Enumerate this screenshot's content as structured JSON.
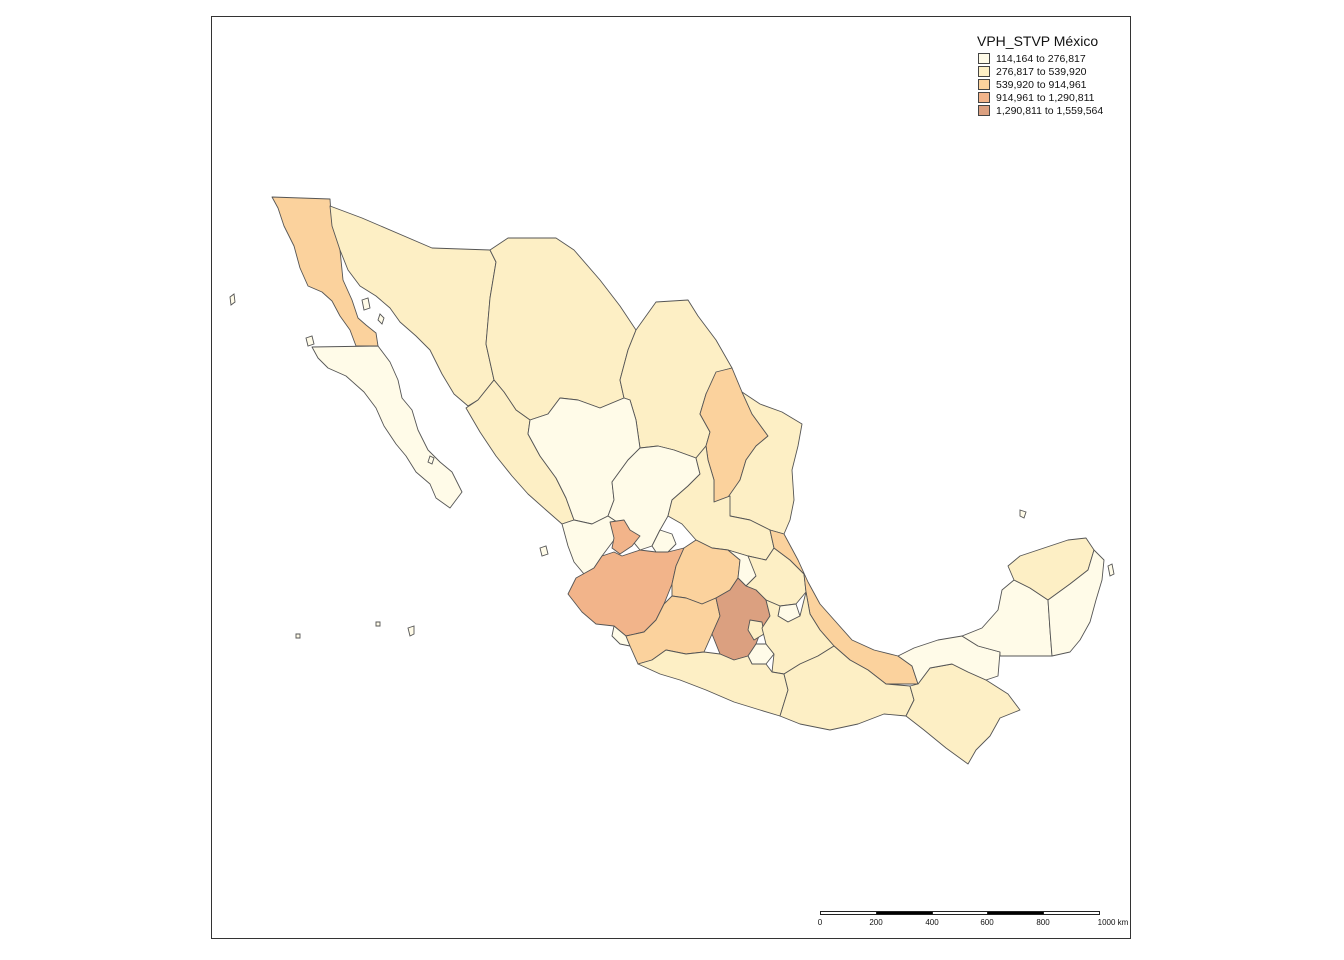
{
  "map": {
    "title": "VPH_STVP México",
    "classes": [
      {
        "label": "114,164 to 276,817",
        "color": "#fffbe8"
      },
      {
        "label": "276,817 to 539,920",
        "color": "#fdefc5"
      },
      {
        "label": "539,920 to 914,961",
        "color": "#fbd29d"
      },
      {
        "label": "914,961 to 1,290,811",
        "color": "#f2b48a"
      },
      {
        "label": "1,290,811 to 1,559,564",
        "color": "#dba080"
      }
    ],
    "regions": [
      {
        "id": "baja-california",
        "class": 2
      },
      {
        "id": "baja-california-sur",
        "class": 0
      },
      {
        "id": "sonora",
        "class": 1
      },
      {
        "id": "chihuahua",
        "class": 1
      },
      {
        "id": "coahuila",
        "class": 1
      },
      {
        "id": "nuevo-leon",
        "class": 2
      },
      {
        "id": "tamaulipas",
        "class": 1
      },
      {
        "id": "sinaloa",
        "class": 1
      },
      {
        "id": "durango",
        "class": 0
      },
      {
        "id": "zacatecas",
        "class": 0
      },
      {
        "id": "san-luis-potosi",
        "class": 1
      },
      {
        "id": "nayarit",
        "class": 0
      },
      {
        "id": "aguascalientes",
        "class": 0
      },
      {
        "id": "jalisco-north",
        "class": 3
      },
      {
        "id": "jalisco",
        "class": 3
      },
      {
        "id": "guanajuato",
        "class": 2
      },
      {
        "id": "queretaro",
        "class": 0
      },
      {
        "id": "hidalgo",
        "class": 1
      },
      {
        "id": "veracruz",
        "class": 2
      },
      {
        "id": "colima",
        "class": 0
      },
      {
        "id": "michoacan",
        "class": 2
      },
      {
        "id": "estado-de-mexico",
        "class": 4
      },
      {
        "id": "cdmx",
        "class": 1
      },
      {
        "id": "morelos",
        "class": 0
      },
      {
        "id": "tlaxcala",
        "class": 0
      },
      {
        "id": "puebla",
        "class": 1
      },
      {
        "id": "guerrero",
        "class": 1
      },
      {
        "id": "oaxaca",
        "class": 1
      },
      {
        "id": "chiapas",
        "class": 1
      },
      {
        "id": "tabasco",
        "class": 0
      },
      {
        "id": "campeche",
        "class": 0
      },
      {
        "id": "yucatan",
        "class": 1
      },
      {
        "id": "quintana-roo",
        "class": 0
      }
    ]
  },
  "scalebar": {
    "ticks": [
      "0",
      "200",
      "400",
      "600",
      "800",
      "1000 km"
    ]
  }
}
